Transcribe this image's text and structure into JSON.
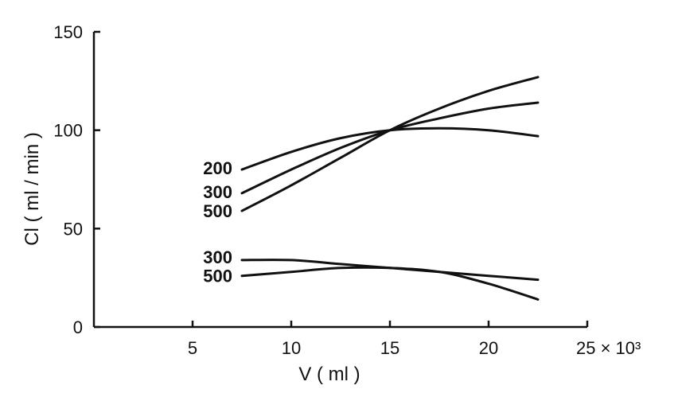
{
  "chart_data": {
    "type": "line",
    "title": "",
    "xlabel": "V ( ml )",
    "ylabel": "Cl ( ml / min )",
    "x_multiplier_label": "25 × 10³",
    "xlim": [
      0,
      25
    ],
    "ylim": [
      0,
      150
    ],
    "x_ticks": [
      5,
      10,
      15,
      20,
      25
    ],
    "x_tick_labels": [
      "5",
      "10",
      "15",
      "20",
      ""
    ],
    "y_ticks": [
      0,
      50,
      100,
      150
    ],
    "y_tick_labels": [
      "0",
      "50",
      "100",
      "150"
    ],
    "grid": false,
    "legend": "none",
    "colors": {
      "line": "#111111",
      "axis": "#111111"
    },
    "series": [
      {
        "name": "200",
        "x": [
          7.5,
          10,
          12.5,
          15,
          17.5,
          20,
          22.5
        ],
        "y": [
          80,
          89,
          96,
          100,
          101,
          100,
          97
        ]
      },
      {
        "name": "300",
        "x": [
          7.5,
          10,
          12.5,
          15,
          17.5,
          20,
          22.5
        ],
        "y": [
          68,
          80,
          91,
          100,
          106,
          111,
          114
        ]
      },
      {
        "name": "500",
        "x": [
          7.5,
          10,
          12.5,
          15,
          17.5,
          20,
          22.5
        ],
        "y": [
          59,
          72,
          86,
          100,
          111,
          120,
          127
        ]
      },
      {
        "name": "300",
        "x": [
          7.5,
          10,
          12.5,
          15,
          17.5,
          20,
          22.5
        ],
        "y": [
          34,
          34,
          32,
          30,
          28,
          26,
          24
        ]
      },
      {
        "name": "500",
        "x": [
          7.5,
          10,
          12.5,
          15,
          17.5,
          20,
          22.5
        ],
        "y": [
          26,
          28,
          30,
          30,
          28,
          22,
          14
        ]
      }
    ]
  }
}
